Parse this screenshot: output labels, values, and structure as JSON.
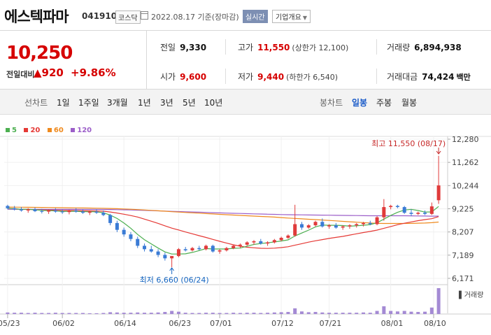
{
  "header": {
    "name": "에스텍파마",
    "code": "041910",
    "market": "코스닥",
    "date": "2022.08.17 기준(장마감)",
    "realtime": "실시간",
    "company_btn": "기업개요"
  },
  "price": {
    "current": "10,250",
    "prev_label": "전일대비",
    "change": "▲920",
    "pct": "+9.86%"
  },
  "stats": {
    "prev": {
      "label": "전일",
      "value": "9,330"
    },
    "high": {
      "label": "고가",
      "value": "11,550",
      "sub": "(상한가 12,100)"
    },
    "volume": {
      "label": "거래량",
      "value": "6,894,938"
    },
    "open": {
      "label": "시가",
      "value": "9,600"
    },
    "low": {
      "label": "저가",
      "value": "9,440",
      "sub": "(하한가 6,540)"
    },
    "amount": {
      "label": "거래대금",
      "value": "74,424",
      "unit": "백만"
    }
  },
  "tabs": {
    "line_label": "선차트",
    "line": [
      "1일",
      "1주일",
      "3개월",
      "1년",
      "3년",
      "5년",
      "10년"
    ],
    "candle_label": "봉차트",
    "candle": [
      "일봉",
      "주봉",
      "월봉"
    ],
    "active": "일봉"
  },
  "colors": {
    "up": "#e03a3a",
    "down": "#3a7bd5",
    "ma5": "#4caf50",
    "ma20": "#e53935",
    "ma60": "#ef8a1e",
    "ma120": "#9c5fc9",
    "volume": "#a48ad4"
  },
  "chart_data": {
    "type": "candlestick",
    "legend": [
      "5",
      "20",
      "60",
      "120"
    ],
    "ylim": [
      6171,
      12280
    ],
    "y_ticks": [
      "12,280",
      "11,262",
      "10,244",
      "9,225",
      "8,207",
      "7,189",
      "6,171"
    ],
    "x_ticks": [
      "05/23",
      "06/02",
      "06/14",
      "06/23",
      "07/01",
      "07/12",
      "07/21",
      "08/01",
      "08/10"
    ],
    "volume_label": "거래량",
    "high_annotation": "최고 11,550 (08/17)",
    "low_annotation": "최저 6,660 (06/24)",
    "candles": [
      {
        "o": 9350,
        "h": 9400,
        "l": 9200,
        "c": 9250
      },
      {
        "o": 9250,
        "h": 9350,
        "l": 9150,
        "c": 9200
      },
      {
        "o": 9200,
        "h": 9300,
        "l": 9100,
        "c": 9150
      },
      {
        "o": 9150,
        "h": 9250,
        "l": 9050,
        "c": 9200
      },
      {
        "o": 9200,
        "h": 9280,
        "l": 9080,
        "c": 9120
      },
      {
        "o": 9120,
        "h": 9220,
        "l": 9020,
        "c": 9100
      },
      {
        "o": 9100,
        "h": 9200,
        "l": 9000,
        "c": 9150
      },
      {
        "o": 9150,
        "h": 9250,
        "l": 9050,
        "c": 9100
      },
      {
        "o": 9100,
        "h": 9200,
        "l": 9000,
        "c": 9080
      },
      {
        "o": 9080,
        "h": 9180,
        "l": 8980,
        "c": 9150
      },
      {
        "o": 9150,
        "h": 9250,
        "l": 9050,
        "c": 9100
      },
      {
        "o": 9100,
        "h": 9200,
        "l": 9000,
        "c": 9050
      },
      {
        "o": 9050,
        "h": 9150,
        "l": 8950,
        "c": 9100
      },
      {
        "o": 9100,
        "h": 9200,
        "l": 9000,
        "c": 9050
      },
      {
        "o": 9050,
        "h": 9150,
        "l": 8900,
        "c": 8950
      },
      {
        "o": 8950,
        "h": 9000,
        "l": 8500,
        "c": 8600
      },
      {
        "o": 8600,
        "h": 8700,
        "l": 8200,
        "c": 8300
      },
      {
        "o": 8300,
        "h": 8400,
        "l": 8000,
        "c": 8100
      },
      {
        "o": 8100,
        "h": 8200,
        "l": 7800,
        "c": 7900
      },
      {
        "o": 7900,
        "h": 8000,
        "l": 7500,
        "c": 7600
      },
      {
        "o": 7600,
        "h": 7700,
        "l": 7350,
        "c": 7450
      },
      {
        "o": 7450,
        "h": 7600,
        "l": 7300,
        "c": 7350
      },
      {
        "o": 7350,
        "h": 7450,
        "l": 7100,
        "c": 7200
      },
      {
        "o": 7200,
        "h": 7300,
        "l": 6950,
        "c": 7050
      },
      {
        "o": 7050,
        "h": 7150,
        "l": 6660,
        "c": 7150
      },
      {
        "o": 7150,
        "h": 7500,
        "l": 7100,
        "c": 7450
      },
      {
        "o": 7450,
        "h": 7550,
        "l": 7350,
        "c": 7400
      },
      {
        "o": 7400,
        "h": 7550,
        "l": 7350,
        "c": 7500
      },
      {
        "o": 7500,
        "h": 7600,
        "l": 7400,
        "c": 7450
      },
      {
        "o": 7450,
        "h": 7650,
        "l": 7400,
        "c": 7600
      },
      {
        "o": 7600,
        "h": 7650,
        "l": 7300,
        "c": 7350
      },
      {
        "o": 7350,
        "h": 7450,
        "l": 7250,
        "c": 7400
      },
      {
        "o": 7400,
        "h": 7550,
        "l": 7350,
        "c": 7500
      },
      {
        "o": 7500,
        "h": 7650,
        "l": 7450,
        "c": 7600
      },
      {
        "o": 7600,
        "h": 7700,
        "l": 7500,
        "c": 7650
      },
      {
        "o": 7650,
        "h": 7800,
        "l": 7600,
        "c": 7750
      },
      {
        "o": 7750,
        "h": 7850,
        "l": 7650,
        "c": 7800
      },
      {
        "o": 7800,
        "h": 7900,
        "l": 7650,
        "c": 7700
      },
      {
        "o": 7700,
        "h": 7800,
        "l": 7600,
        "c": 7750
      },
      {
        "o": 7750,
        "h": 7900,
        "l": 7700,
        "c": 7850
      },
      {
        "o": 7850,
        "h": 8000,
        "l": 7800,
        "c": 7950
      },
      {
        "o": 7950,
        "h": 8100,
        "l": 7900,
        "c": 8050
      },
      {
        "o": 8050,
        "h": 9400,
        "l": 8000,
        "c": 8550
      },
      {
        "o": 8550,
        "h": 8650,
        "l": 8300,
        "c": 8400
      },
      {
        "o": 8400,
        "h": 8550,
        "l": 8350,
        "c": 8500
      },
      {
        "o": 8500,
        "h": 8700,
        "l": 8450,
        "c": 8650
      },
      {
        "o": 8650,
        "h": 8800,
        "l": 8400,
        "c": 8450
      },
      {
        "o": 8450,
        "h": 8550,
        "l": 8350,
        "c": 8500
      },
      {
        "o": 8500,
        "h": 8600,
        "l": 8350,
        "c": 8400
      },
      {
        "o": 8400,
        "h": 8500,
        "l": 8300,
        "c": 8450
      },
      {
        "o": 8450,
        "h": 8550,
        "l": 8350,
        "c": 8500
      },
      {
        "o": 8500,
        "h": 8600,
        "l": 8400,
        "c": 8550
      },
      {
        "o": 8550,
        "h": 8650,
        "l": 8450,
        "c": 8600
      },
      {
        "o": 8600,
        "h": 8700,
        "l": 8500,
        "c": 8550
      },
      {
        "o": 8550,
        "h": 8900,
        "l": 8500,
        "c": 8850
      },
      {
        "o": 8850,
        "h": 9650,
        "l": 8700,
        "c": 9300
      },
      {
        "o": 9300,
        "h": 9400,
        "l": 9200,
        "c": 9350
      },
      {
        "o": 9350,
        "h": 9400,
        "l": 9250,
        "c": 9300
      },
      {
        "o": 9300,
        "h": 9350,
        "l": 9000,
        "c": 9050
      },
      {
        "o": 9050,
        "h": 9200,
        "l": 8900,
        "c": 9000
      },
      {
        "o": 9000,
        "h": 9100,
        "l": 8950,
        "c": 9050
      },
      {
        "o": 9050,
        "h": 9150,
        "l": 8950,
        "c": 9000
      },
      {
        "o": 9000,
        "h": 9500,
        "l": 8950,
        "c": 9330
      },
      {
        "o": 9600,
        "h": 11550,
        "l": 9440,
        "c": 10250
      }
    ],
    "volumes": [
      0.06,
      0.05,
      0.05,
      0.04,
      0.05,
      0.04,
      0.04,
      0.05,
      0.04,
      0.04,
      0.04,
      0.04,
      0.03,
      0.03,
      0.04,
      0.07,
      0.06,
      0.05,
      0.05,
      0.06,
      0.05,
      0.05,
      0.06,
      0.08,
      0.12,
      0.09,
      0.05,
      0.04,
      0.04,
      0.05,
      0.05,
      0.04,
      0.04,
      0.05,
      0.04,
      0.05,
      0.05,
      0.04,
      0.05,
      0.06,
      0.07,
      0.08,
      0.22,
      0.1,
      0.07,
      0.08,
      0.06,
      0.05,
      0.05,
      0.05,
      0.05,
      0.05,
      0.06,
      0.05,
      0.12,
      0.3,
      0.12,
      0.1,
      0.12,
      0.09,
      0.08,
      0.09,
      0.25,
      1.0
    ]
  }
}
